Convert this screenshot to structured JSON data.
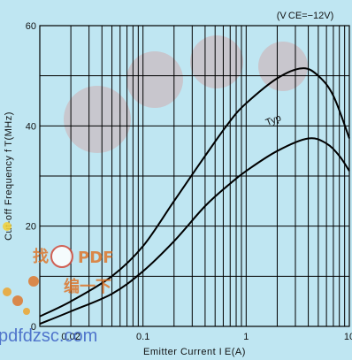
{
  "chart_data": {
    "type": "line",
    "condition": "(V CE=−12V)",
    "xlabel": "Emitter Current I E(A)",
    "ylabel": "Cut-off Frequency f T(MHz)",
    "x_scale": "log",
    "xlim": [
      0.01,
      10
    ],
    "ylim": [
      0,
      60
    ],
    "x_tick_labels": [
      "0.02",
      "0.1",
      "1",
      "10"
    ],
    "x_ticks": [
      0.02,
      0.1,
      1,
      10
    ],
    "y_tick_labels": [
      "0",
      "20",
      "40",
      "60"
    ],
    "y_ticks": [
      0,
      20,
      40,
      60
    ],
    "grid": true,
    "annotations": [
      {
        "text": "Typ",
        "x": 1.6,
        "y": 40
      }
    ],
    "series": [
      {
        "points": [
          [
            0.01,
            2
          ],
          [
            0.02,
            5
          ],
          [
            0.05,
            10
          ],
          [
            0.1,
            16
          ],
          [
            0.2,
            25
          ],
          [
            0.4,
            34
          ],
          [
            0.7,
            41
          ],
          [
            1.0,
            44.5
          ],
          [
            2.0,
            49.5
          ],
          [
            3.5,
            51.5
          ],
          [
            5.0,
            50
          ],
          [
            7.0,
            46
          ],
          [
            10,
            37.5
          ]
        ]
      },
      {
        "points": [
          [
            0.01,
            0.5
          ],
          [
            0.02,
            3
          ],
          [
            0.05,
            6.5
          ],
          [
            0.1,
            11
          ],
          [
            0.2,
            17
          ],
          [
            0.4,
            24
          ],
          [
            0.7,
            28.5
          ],
          [
            1.0,
            31
          ],
          [
            2.0,
            35
          ],
          [
            4.0,
            37.5
          ],
          [
            6.0,
            36.5
          ],
          [
            8.0,
            34
          ],
          [
            10,
            31
          ]
        ]
      }
    ]
  },
  "watermark": {
    "domain": "pdfdzsc.com",
    "cn_text": "找",
    "pdf_text": "PDF",
    "cn_text2": "编一下"
  }
}
